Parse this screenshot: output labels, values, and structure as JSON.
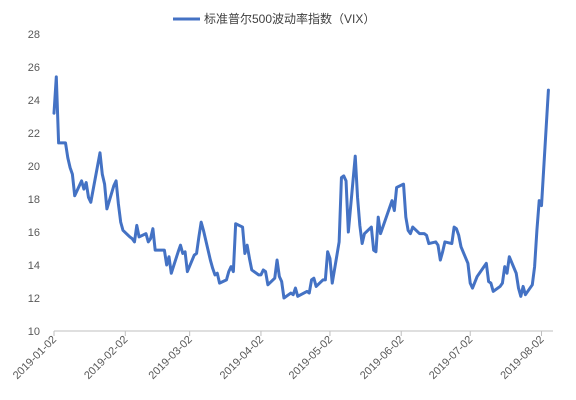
{
  "chart_data": {
    "type": "line",
    "title": "",
    "xlabel": "",
    "ylabel": "",
    "ylim": [
      10,
      28
    ],
    "yticks": [
      10,
      12,
      14,
      16,
      18,
      20,
      22,
      24,
      26,
      28
    ],
    "xlim": [
      "2019-01-02",
      "2019-08-07"
    ],
    "xticks": [
      "2019-01-02",
      "2019-02-02",
      "2019-03-02",
      "2019-04-02",
      "2019-05-02",
      "2019-06-02",
      "2019-07-02",
      "2019-08-02"
    ],
    "grid": false,
    "legend": "top",
    "series": [
      {
        "name": "标准普尔500波动率指数（VIX）",
        "color": "#4472C4",
        "points": [
          [
            "2019-01-02",
            23.2
          ],
          [
            "2019-01-03",
            25.4
          ],
          [
            "2019-01-04",
            21.4
          ],
          [
            "2019-01-07",
            21.4
          ],
          [
            "2019-01-08",
            20.5
          ],
          [
            "2019-01-09",
            19.9
          ],
          [
            "2019-01-10",
            19.5
          ],
          [
            "2019-01-11",
            18.2
          ],
          [
            "2019-01-14",
            19.1
          ],
          [
            "2019-01-15",
            18.6
          ],
          [
            "2019-01-16",
            19.0
          ],
          [
            "2019-01-17",
            18.1
          ],
          [
            "2019-01-18",
            17.8
          ],
          [
            "2019-01-22",
            20.8
          ],
          [
            "2019-01-23",
            19.5
          ],
          [
            "2019-01-24",
            18.9
          ],
          [
            "2019-01-25",
            17.4
          ],
          [
            "2019-01-28",
            18.8
          ],
          [
            "2019-01-29",
            19.1
          ],
          [
            "2019-01-30",
            17.7
          ],
          [
            "2019-01-31",
            16.6
          ],
          [
            "2019-02-01",
            16.1
          ],
          [
            "2019-02-04",
            15.7
          ],
          [
            "2019-02-05",
            15.6
          ],
          [
            "2019-02-06",
            15.4
          ],
          [
            "2019-02-07",
            16.4
          ],
          [
            "2019-02-08",
            15.7
          ],
          [
            "2019-02-11",
            15.9
          ],
          [
            "2019-02-12",
            15.4
          ],
          [
            "2019-02-13",
            15.6
          ],
          [
            "2019-02-14",
            16.2
          ],
          [
            "2019-02-15",
            14.9
          ],
          [
            "2019-02-19",
            14.9
          ],
          [
            "2019-02-20",
            14.0
          ],
          [
            "2019-02-21",
            14.5
          ],
          [
            "2019-02-22",
            13.5
          ],
          [
            "2019-02-25",
            14.8
          ],
          [
            "2019-02-26",
            15.2
          ],
          [
            "2019-02-27",
            14.7
          ],
          [
            "2019-02-28",
            14.8
          ],
          [
            "2019-03-01",
            13.6
          ],
          [
            "2019-03-04",
            14.6
          ],
          [
            "2019-03-05",
            14.7
          ],
          [
            "2019-03-06",
            15.7
          ],
          [
            "2019-03-07",
            16.6
          ],
          [
            "2019-03-08",
            16.1
          ],
          [
            "2019-03-11",
            14.3
          ],
          [
            "2019-03-12",
            13.8
          ],
          [
            "2019-03-13",
            13.4
          ],
          [
            "2019-03-14",
            13.5
          ],
          [
            "2019-03-15",
            12.9
          ],
          [
            "2019-03-18",
            13.1
          ],
          [
            "2019-03-19",
            13.6
          ],
          [
            "2019-03-20",
            13.9
          ],
          [
            "2019-03-21",
            13.6
          ],
          [
            "2019-03-22",
            16.5
          ],
          [
            "2019-03-25",
            16.3
          ],
          [
            "2019-03-26",
            14.7
          ],
          [
            "2019-03-27",
            15.2
          ],
          [
            "2019-03-28",
            14.4
          ],
          [
            "2019-03-29",
            13.7
          ],
          [
            "2019-04-01",
            13.4
          ],
          [
            "2019-04-02",
            13.4
          ],
          [
            "2019-04-03",
            13.7
          ],
          [
            "2019-04-04",
            13.6
          ],
          [
            "2019-04-05",
            12.8
          ],
          [
            "2019-04-08",
            13.2
          ],
          [
            "2019-04-09",
            14.3
          ],
          [
            "2019-04-10",
            13.3
          ],
          [
            "2019-04-11",
            13.0
          ],
          [
            "2019-04-12",
            12.0
          ],
          [
            "2019-04-15",
            12.3
          ],
          [
            "2019-04-16",
            12.2
          ],
          [
            "2019-04-17",
            12.6
          ],
          [
            "2019-04-18",
            12.1
          ],
          [
            "2019-04-22",
            12.4
          ],
          [
            "2019-04-23",
            12.3
          ],
          [
            "2019-04-24",
            13.1
          ],
          [
            "2019-04-25",
            13.2
          ],
          [
            "2019-04-26",
            12.7
          ],
          [
            "2019-04-29",
            13.1
          ],
          [
            "2019-04-30",
            13.1
          ],
          [
            "2019-05-01",
            14.8
          ],
          [
            "2019-05-02",
            14.4
          ],
          [
            "2019-05-03",
            12.9
          ],
          [
            "2019-05-06",
            15.4
          ],
          [
            "2019-05-07",
            19.3
          ],
          [
            "2019-05-08",
            19.4
          ],
          [
            "2019-05-09",
            19.1
          ],
          [
            "2019-05-10",
            16.0
          ],
          [
            "2019-05-13",
            20.6
          ],
          [
            "2019-05-14",
            18.1
          ],
          [
            "2019-05-15",
            16.4
          ],
          [
            "2019-05-16",
            15.3
          ],
          [
            "2019-05-17",
            15.9
          ],
          [
            "2019-05-20",
            16.3
          ],
          [
            "2019-05-21",
            14.9
          ],
          [
            "2019-05-22",
            14.8
          ],
          [
            "2019-05-23",
            16.9
          ],
          [
            "2019-05-24",
            15.9
          ],
          [
            "2019-05-28",
            17.5
          ],
          [
            "2019-05-29",
            17.9
          ],
          [
            "2019-05-30",
            17.3
          ],
          [
            "2019-05-31",
            18.7
          ],
          [
            "2019-06-03",
            18.9
          ],
          [
            "2019-06-04",
            16.9
          ],
          [
            "2019-06-05",
            16.1
          ],
          [
            "2019-06-06",
            15.9
          ],
          [
            "2019-06-07",
            16.3
          ],
          [
            "2019-06-10",
            15.9
          ],
          [
            "2019-06-11",
            15.9
          ],
          [
            "2019-06-12",
            15.9
          ],
          [
            "2019-06-13",
            15.8
          ],
          [
            "2019-06-14",
            15.3
          ],
          [
            "2019-06-17",
            15.4
          ],
          [
            "2019-06-18",
            15.2
          ],
          [
            "2019-06-19",
            14.3
          ],
          [
            "2019-06-20",
            14.8
          ],
          [
            "2019-06-21",
            15.4
          ],
          [
            "2019-06-24",
            15.3
          ],
          [
            "2019-06-25",
            16.3
          ],
          [
            "2019-06-26",
            16.2
          ],
          [
            "2019-06-27",
            15.8
          ],
          [
            "2019-06-28",
            15.1
          ],
          [
            "2019-07-01",
            14.1
          ],
          [
            "2019-07-02",
            12.9
          ],
          [
            "2019-07-03",
            12.6
          ],
          [
            "2019-07-05",
            13.3
          ],
          [
            "2019-07-08",
            13.9
          ],
          [
            "2019-07-09",
            14.1
          ],
          [
            "2019-07-10",
            13.0
          ],
          [
            "2019-07-11",
            12.9
          ],
          [
            "2019-07-12",
            12.4
          ],
          [
            "2019-07-15",
            12.7
          ],
          [
            "2019-07-16",
            12.9
          ],
          [
            "2019-07-17",
            13.9
          ],
          [
            "2019-07-18",
            13.5
          ],
          [
            "2019-07-19",
            14.5
          ],
          [
            "2019-07-22",
            13.5
          ],
          [
            "2019-07-23",
            12.6
          ],
          [
            "2019-07-24",
            12.1
          ],
          [
            "2019-07-25",
            12.7
          ],
          [
            "2019-07-26",
            12.2
          ],
          [
            "2019-07-29",
            12.8
          ],
          [
            "2019-07-30",
            13.9
          ],
          [
            "2019-07-31",
            16.1
          ],
          [
            "2019-08-01",
            17.9
          ],
          [
            "2019-08-02",
            17.6
          ],
          [
            "2019-08-05",
            24.6
          ]
        ]
      }
    ]
  }
}
